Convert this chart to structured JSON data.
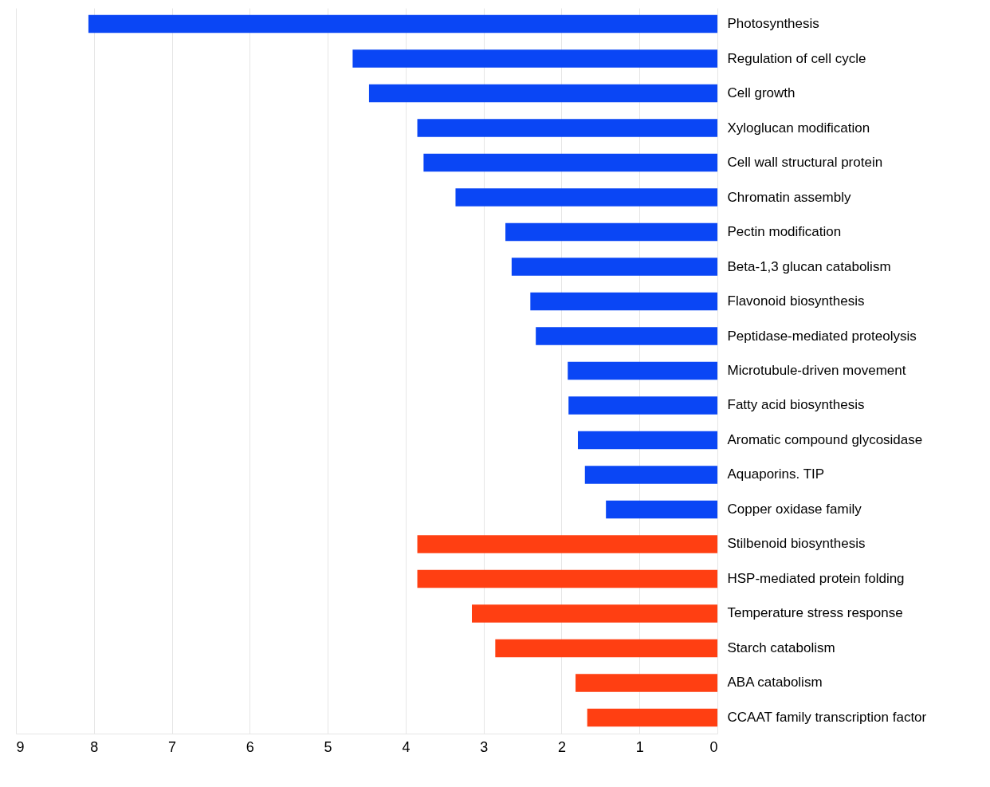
{
  "chart_data": {
    "type": "bar",
    "orientation": "horizontal",
    "categories": [
      "Photosynthesis",
      "Regulation of cell cycle",
      "Cell growth",
      "Xyloglucan modification",
      "Cell wall structural protein",
      "Chromatin assembly",
      "Pectin modification",
      "Beta-1,3 glucan catabolism",
      "Flavonoid biosynthesis",
      "Peptidase-mediated proteolysis",
      "Microtubule-driven movement",
      "Fatty acid biosynthesis",
      "Aromatic compound glycosidase",
      "Aquaporins. TIP",
      "Copper oxidase family",
      "Stilbenoid biosynthesis",
      "HSP-mediated protein folding",
      "Temperature stress response",
      "Starch catabolism",
      "ABA catabolism",
      "CCAAT family transcription factor"
    ],
    "values": [
      8.07,
      4.68,
      4.47,
      3.85,
      3.77,
      3.36,
      2.72,
      2.64,
      2.4,
      2.33,
      1.92,
      1.91,
      1.79,
      1.7,
      1.43,
      3.85,
      3.85,
      3.15,
      2.85,
      1.82,
      1.67
    ],
    "colors": [
      "#0a46f5",
      "#0a46f5",
      "#0a46f5",
      "#0a46f5",
      "#0a46f5",
      "#0a46f5",
      "#0a46f5",
      "#0a46f5",
      "#0a46f5",
      "#0a46f5",
      "#0a46f5",
      "#0a46f5",
      "#0a46f5",
      "#0a46f5",
      "#0a46f5",
      "#ff3f12",
      "#ff3f12",
      "#ff3f12",
      "#ff3f12",
      "#ff3f12",
      "#ff3f12"
    ],
    "xlim": [
      9,
      0
    ],
    "xticks": [
      9,
      8,
      7,
      6,
      5,
      4,
      3,
      2,
      1,
      0
    ],
    "grid": "x"
  }
}
